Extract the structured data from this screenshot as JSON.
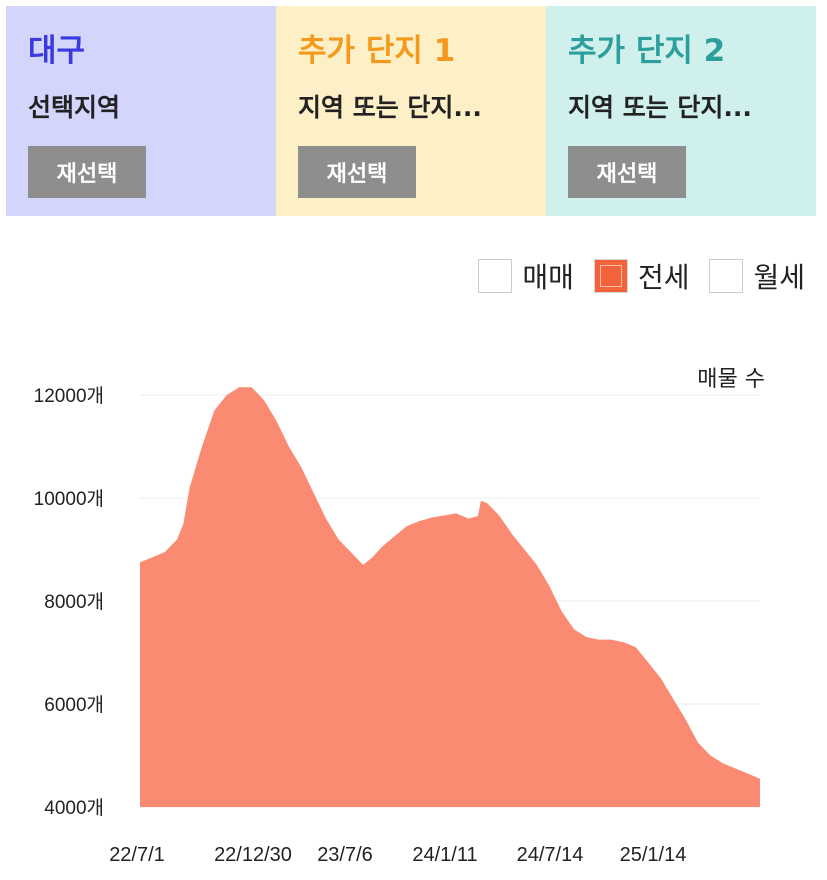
{
  "cards": [
    {
      "title": "대구",
      "subtitle": "선택지역",
      "button": "재선택",
      "bg": "#d3d5fb",
      "title_color": "#3b3ae0"
    },
    {
      "title": "추가 단지 1",
      "subtitle": "지역 또는 단지...",
      "button": "재선택",
      "bg": "#fdefc6",
      "title_color": "#f39a1e"
    },
    {
      "title": "추가 단지 2",
      "subtitle": "지역 또는 단지...",
      "button": "재선택",
      "bg": "#d0f0ee",
      "title_color": "#2c9f9c"
    }
  ],
  "legend": [
    {
      "label": "매매",
      "checked": false
    },
    {
      "label": "전세",
      "checked": true
    },
    {
      "label": "월세",
      "checked": false
    }
  ],
  "chart_data": {
    "type": "area",
    "ylabel": "매물 수",
    "ylim": [
      4000,
      12000
    ],
    "yticks": [
      "4000개",
      "6000개",
      "8000개",
      "10000개",
      "12000개"
    ],
    "ytick_values": [
      4000,
      6000,
      8000,
      10000,
      12000
    ],
    "xticks": [
      "22/7/1",
      "22/12/30",
      "23/7/6",
      "24/1/11",
      "24/7/14",
      "25/1/14"
    ],
    "series_color": "#fa8a72",
    "grid": true,
    "series": [
      {
        "name": "전세",
        "points": [
          [
            0,
            8750
          ],
          [
            0.02,
            8850
          ],
          [
            0.04,
            8950
          ],
          [
            0.06,
            9200
          ],
          [
            0.07,
            9500
          ],
          [
            0.08,
            10200
          ],
          [
            0.1,
            11000
          ],
          [
            0.12,
            11700
          ],
          [
            0.14,
            12000
          ],
          [
            0.16,
            12150
          ],
          [
            0.18,
            12150
          ],
          [
            0.2,
            11900
          ],
          [
            0.22,
            11500
          ],
          [
            0.24,
            11000
          ],
          [
            0.26,
            10600
          ],
          [
            0.28,
            10100
          ],
          [
            0.3,
            9600
          ],
          [
            0.32,
            9200
          ],
          [
            0.34,
            8950
          ],
          [
            0.36,
            8700
          ],
          [
            0.375,
            8850
          ],
          [
            0.39,
            9050
          ],
          [
            0.41,
            9250
          ],
          [
            0.43,
            9450
          ],
          [
            0.45,
            9550
          ],
          [
            0.47,
            9620
          ],
          [
            0.49,
            9660
          ],
          [
            0.51,
            9700
          ],
          [
            0.53,
            9600
          ],
          [
            0.545,
            9650
          ],
          [
            0.55,
            9950
          ],
          [
            0.56,
            9900
          ],
          [
            0.58,
            9650
          ],
          [
            0.6,
            9300
          ],
          [
            0.62,
            9000
          ],
          [
            0.64,
            8700
          ],
          [
            0.66,
            8300
          ],
          [
            0.68,
            7800
          ],
          [
            0.7,
            7450
          ],
          [
            0.72,
            7300
          ],
          [
            0.74,
            7250
          ],
          [
            0.76,
            7250
          ],
          [
            0.78,
            7200
          ],
          [
            0.8,
            7100
          ],
          [
            0.82,
            6800
          ],
          [
            0.84,
            6500
          ],
          [
            0.86,
            6100
          ],
          [
            0.88,
            5700
          ],
          [
            0.9,
            5250
          ],
          [
            0.92,
            5000
          ],
          [
            0.94,
            4850
          ],
          [
            0.96,
            4750
          ],
          [
            0.98,
            4650
          ],
          [
            1.0,
            4550
          ]
        ]
      }
    ]
  }
}
